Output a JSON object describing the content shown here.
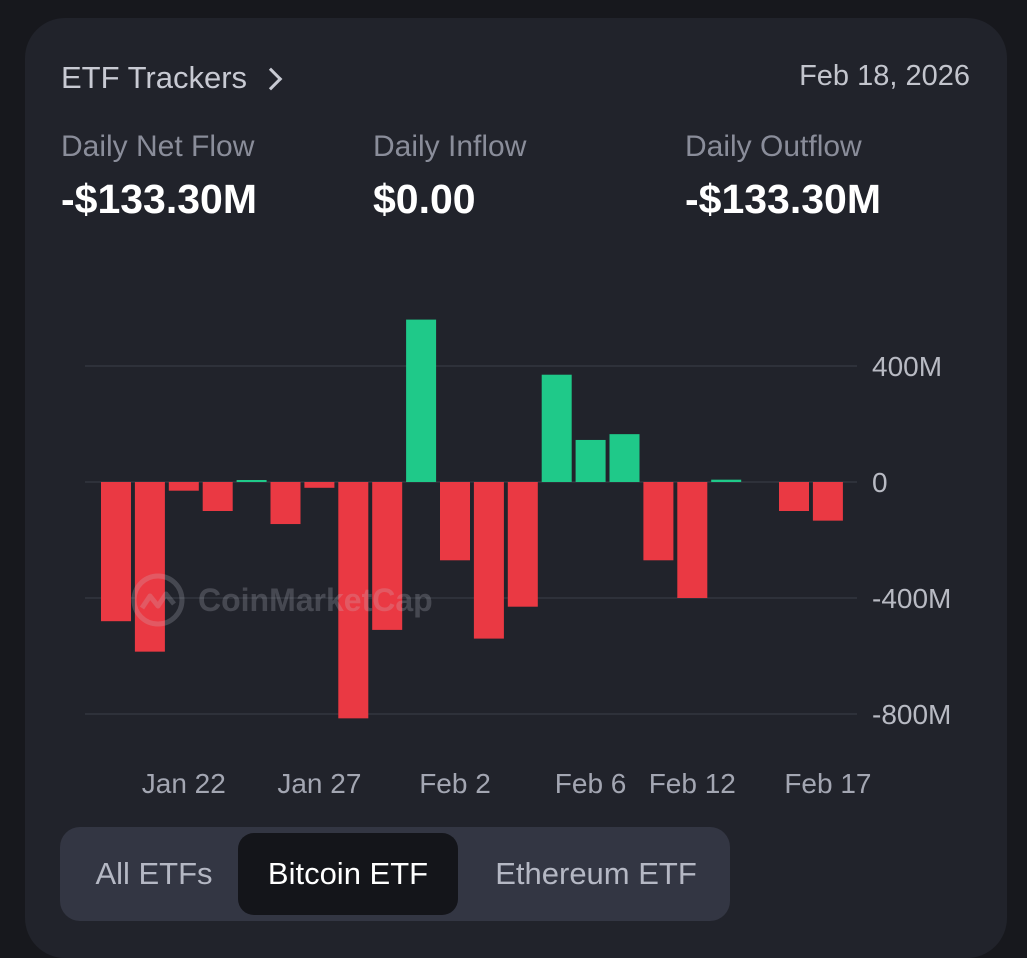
{
  "header": {
    "title": "ETF Trackers",
    "date": "Feb 18, 2026"
  },
  "stats": {
    "net_flow": {
      "label": "Daily Net Flow",
      "value": "-$133.30M"
    },
    "inflow": {
      "label": "Daily Inflow",
      "value": "$0.00"
    },
    "outflow": {
      "label": "Daily Outflow",
      "value": "-$133.30M"
    }
  },
  "watermark": "CoinMarketCap",
  "colors": {
    "positive": "#1fc989",
    "negative": "#ea3943",
    "grid": "#33363f",
    "axis_text": "#b8bac3"
  },
  "tabs": [
    {
      "label": "All ETFs",
      "active": false
    },
    {
      "label": "Bitcoin ETF",
      "active": true
    },
    {
      "label": "Ethereum ETF",
      "active": false
    }
  ],
  "chart_data": {
    "type": "bar",
    "ylim": [
      -900,
      600
    ],
    "y_ticks": [
      {
        "value": 400,
        "label": "400M"
      },
      {
        "value": 0,
        "label": "0"
      },
      {
        "value": -400,
        "label": "-400M"
      },
      {
        "value": -800,
        "label": "-800M"
      }
    ],
    "x_tick_labels": [
      {
        "index": 2,
        "label": "Jan 22"
      },
      {
        "index": 6,
        "label": "Jan 27"
      },
      {
        "index": 10,
        "label": "Feb 2"
      },
      {
        "index": 14,
        "label": "Feb 6"
      },
      {
        "index": 17,
        "label": "Feb 12"
      },
      {
        "index": 21,
        "label": "Feb 17"
      }
    ],
    "values": [
      -480,
      -585,
      -30,
      -100,
      5,
      -145,
      -20,
      -815,
      -510,
      560,
      -270,
      -540,
      -430,
      370,
      145,
      165,
      -270,
      -400,
      8,
      0,
      -100,
      -133.3
    ],
    "grid": true,
    "title": "",
    "xlabel": "",
    "ylabel": ""
  }
}
